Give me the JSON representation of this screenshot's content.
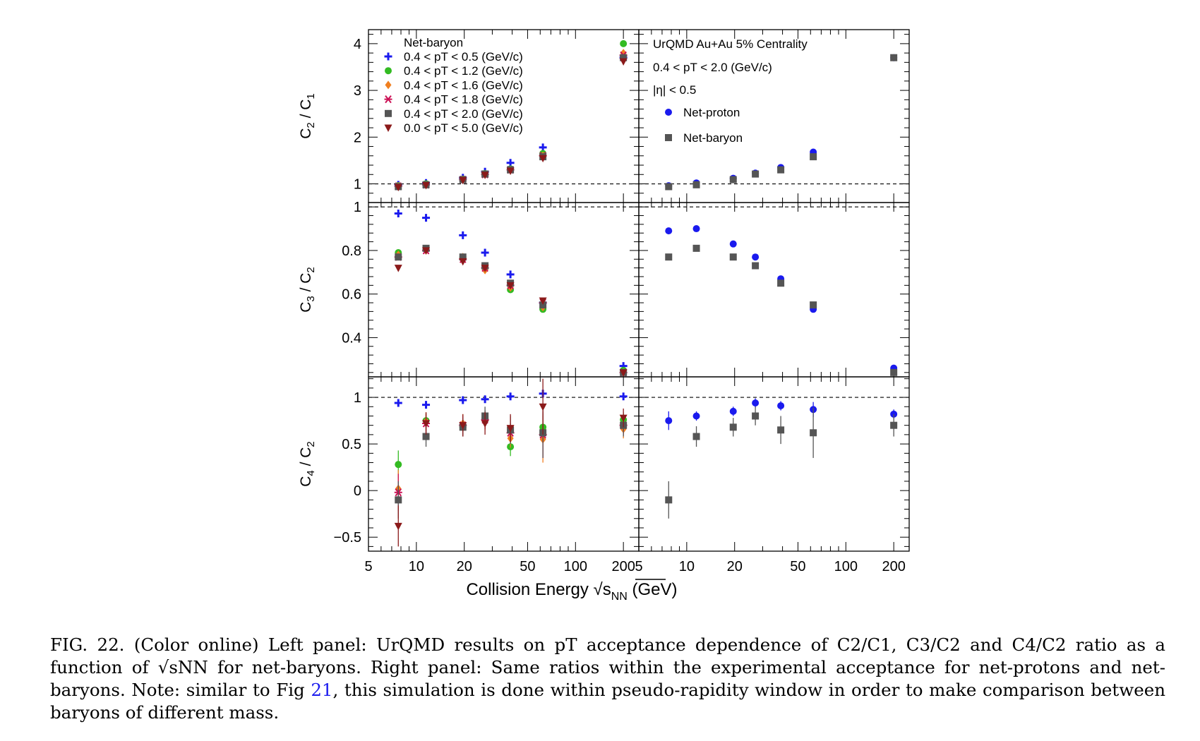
{
  "figure": {
    "xlabel": "Collision Energy √s",
    "xlabel_sub": "NN",
    "xlabel_unit": " (GeV)",
    "xticks": [
      "5",
      "10",
      "20",
      "50",
      "100",
      "200"
    ]
  },
  "chart_data": [
    {
      "type": "scatter",
      "panel": "left-top",
      "ylabel": "C2 / C1",
      "xscale": "log",
      "xlim": [
        5,
        250
      ],
      "ylim": [
        0.6,
        4.3
      ],
      "yticks": [
        "1",
        "2",
        "3",
        "4"
      ],
      "reference_line": 1,
      "legend_title": "Net-baryon",
      "series": [
        {
          "name": "0.4 < pT < 0.5 (GeV/c)",
          "marker": "plus",
          "color": "#1a1aee",
          "x": [
            7.7,
            11.5,
            19.6,
            27,
            39,
            62.4,
            200
          ],
          "y": [
            0.98,
            1.02,
            1.13,
            1.26,
            1.45,
            1.78,
            3.7
          ]
        },
        {
          "name": "0.4 < pT < 1.2 (GeV/c)",
          "marker": "circle",
          "color": "#33bb22",
          "x": [
            7.7,
            11.5,
            19.6,
            27,
            39,
            62.4,
            200
          ],
          "y": [
            0.96,
            1.0,
            1.1,
            1.22,
            1.32,
            1.65,
            4.0
          ]
        },
        {
          "name": "0.4 < pT < 1.6 (GeV/c)",
          "marker": "diamond",
          "color": "#f07f20",
          "x": [
            7.7,
            11.5,
            19.6,
            27,
            39,
            62.4,
            200
          ],
          "y": [
            0.95,
            0.98,
            1.09,
            1.2,
            1.3,
            1.6,
            3.8
          ]
        },
        {
          "name": "0.4 < pT < 1.8 (GeV/c)",
          "marker": "star",
          "color": "#cc1155",
          "x": [
            7.7,
            11.5,
            19.6,
            27,
            39,
            62.4,
            200
          ],
          "y": [
            0.95,
            0.98,
            1.09,
            1.2,
            1.3,
            1.6,
            3.75
          ]
        },
        {
          "name": "0.4 < pT < 2.0 (GeV/c)",
          "marker": "square",
          "color": "#555555",
          "x": [
            7.7,
            11.5,
            19.6,
            27,
            39,
            62.4,
            200
          ],
          "y": [
            0.94,
            0.98,
            1.09,
            1.21,
            1.3,
            1.58,
            3.7
          ]
        },
        {
          "name": "0.0 < pT < 5.0 (GeV/c)",
          "marker": "triangle-down",
          "color": "#8b1a1a",
          "x": [
            7.7,
            11.5,
            19.6,
            27,
            39,
            62.4,
            200
          ],
          "y": [
            0.93,
            0.97,
            1.08,
            1.19,
            1.28,
            1.55,
            3.62
          ]
        }
      ]
    },
    {
      "type": "scatter",
      "panel": "right-top",
      "xscale": "log",
      "xlim": [
        5,
        250
      ],
      "ylim": [
        0.6,
        4.3
      ],
      "reference_line": 1,
      "annotations": [
        "UrQMD Au+Au 5% Centrality",
        "0.4 < pT < 2.0 (GeV/c)",
        "|η| < 0.5"
      ],
      "series": [
        {
          "name": "Net-proton",
          "marker": "circle",
          "color": "#1a1aee",
          "x": [
            7.7,
            11.5,
            19.6,
            27,
            39,
            62.4,
            200
          ],
          "y": [
            0.96,
            1.02,
            1.12,
            1.23,
            1.35,
            1.68,
            3.7
          ]
        },
        {
          "name": "Net-baryon",
          "marker": "square",
          "color": "#555555",
          "x": [
            7.7,
            11.5,
            19.6,
            27,
            39,
            62.4,
            200
          ],
          "y": [
            0.94,
            0.98,
            1.09,
            1.21,
            1.3,
            1.58,
            3.7
          ]
        }
      ]
    },
    {
      "type": "scatter",
      "panel": "left-middle",
      "ylabel": "C3 / C2",
      "xscale": "log",
      "xlim": [
        5,
        250
      ],
      "ylim": [
        0.22,
        1.02
      ],
      "yticks": [
        "0.4",
        "0.6",
        "0.8",
        "1"
      ],
      "reference_line": 1,
      "series": [
        {
          "name": "0.4 < pT < 0.5 (GeV/c)",
          "marker": "plus",
          "color": "#1a1aee",
          "x": [
            7.7,
            11.5,
            19.6,
            27,
            39,
            62.4,
            200
          ],
          "y": [
            0.97,
            0.95,
            0.87,
            0.79,
            0.69,
            0.56,
            0.27
          ]
        },
        {
          "name": "0.4 < pT < 1.2 (GeV/c)",
          "marker": "circle",
          "color": "#33bb22",
          "x": [
            7.7,
            11.5,
            19.6,
            27,
            39,
            62.4,
            200
          ],
          "y": [
            0.79,
            0.81,
            0.77,
            0.72,
            0.62,
            0.53,
            0.25
          ]
        },
        {
          "name": "0.4 < pT < 1.6 (GeV/c)",
          "marker": "diamond",
          "color": "#f07f20",
          "x": [
            7.7,
            11.5,
            19.6,
            27,
            39,
            62.4,
            200
          ],
          "y": [
            0.78,
            0.8,
            0.77,
            0.71,
            0.63,
            0.54,
            0.24
          ]
        },
        {
          "name": "0.4 < pT < 1.8 (GeV/c)",
          "marker": "star",
          "color": "#cc1155",
          "x": [
            7.7,
            11.5,
            19.6,
            27,
            39,
            62.4,
            200
          ],
          "y": [
            0.77,
            0.8,
            0.76,
            0.72,
            0.64,
            0.56,
            0.24
          ]
        },
        {
          "name": "0.4 < pT < 2.0 (GeV/c)",
          "marker": "square",
          "color": "#555555",
          "x": [
            7.7,
            11.5,
            19.6,
            27,
            39,
            62.4,
            200
          ],
          "y": [
            0.77,
            0.81,
            0.77,
            0.73,
            0.65,
            0.55,
            0.24
          ]
        },
        {
          "name": "0.0 < pT < 5.0 (GeV/c)",
          "marker": "triangle-down",
          "color": "#8b1a1a",
          "x": [
            7.7,
            11.5,
            19.6,
            27,
            39,
            62.4,
            200
          ],
          "y": [
            0.72,
            0.8,
            0.75,
            0.72,
            0.64,
            0.57,
            0.24
          ]
        }
      ]
    },
    {
      "type": "scatter",
      "panel": "right-middle",
      "xscale": "log",
      "xlim": [
        5,
        250
      ],
      "ylim": [
        0.22,
        1.02
      ],
      "reference_line": 1,
      "series": [
        {
          "name": "Net-proton",
          "marker": "circle",
          "color": "#1a1aee",
          "x": [
            7.7,
            11.5,
            19.6,
            27,
            39,
            62.4,
            200
          ],
          "y": [
            0.89,
            0.9,
            0.83,
            0.77,
            0.67,
            0.53,
            0.26
          ]
        },
        {
          "name": "Net-baryon",
          "marker": "square",
          "color": "#555555",
          "x": [
            7.7,
            11.5,
            19.6,
            27,
            39,
            62.4,
            200
          ],
          "y": [
            0.77,
            0.81,
            0.77,
            0.73,
            0.65,
            0.55,
            0.24
          ]
        }
      ]
    },
    {
      "type": "scatter",
      "panel": "left-bottom",
      "ylabel": "C4 / C2",
      "xscale": "log",
      "xlim": [
        5,
        250
      ],
      "ylim": [
        -0.65,
        1.22
      ],
      "yticks": [
        "−0.5",
        "0",
        "0.5",
        "1"
      ],
      "reference_line": 1,
      "series": [
        {
          "name": "0.4 < pT < 0.5 (GeV/c)",
          "marker": "plus",
          "color": "#1a1aee",
          "x": [
            7.7,
            11.5,
            19.6,
            27,
            39,
            62.4,
            200
          ],
          "y": [
            0.94,
            0.92,
            0.97,
            0.98,
            1.01,
            1.04,
            1.01
          ],
          "err": [
            0.02,
            0.02,
            0.02,
            0.02,
            0.02,
            0.03,
            0.02
          ]
        },
        {
          "name": "0.4 < pT < 1.2 (GeV/c)",
          "marker": "circle",
          "color": "#33bb22",
          "x": [
            7.7,
            11.5,
            19.6,
            27,
            39,
            62.4,
            200
          ],
          "y": [
            0.28,
            0.75,
            0.68,
            0.78,
            0.47,
            0.68,
            0.76
          ],
          "err": [
            0.15,
            0.08,
            0.08,
            0.08,
            0.1,
            0.15,
            0.08
          ]
        },
        {
          "name": "0.4 < pT < 1.6 (GeV/c)",
          "marker": "diamond",
          "color": "#f07f20",
          "x": [
            7.7,
            11.5,
            19.6,
            27,
            39,
            62.4,
            200
          ],
          "y": [
            0.02,
            0.74,
            0.72,
            0.75,
            0.56,
            0.55,
            0.66
          ],
          "err": [
            0.2,
            0.1,
            0.1,
            0.1,
            0.1,
            0.25,
            0.1
          ]
        },
        {
          "name": "0.4 < pT < 1.8 (GeV/c)",
          "marker": "star",
          "color": "#cc1155",
          "x": [
            7.7,
            11.5,
            19.6,
            27,
            39,
            62.4,
            200
          ],
          "y": [
            -0.02,
            0.72,
            0.7,
            0.76,
            0.62,
            0.6,
            0.7
          ],
          "err": [
            0.2,
            0.1,
            0.1,
            0.1,
            0.1,
            0.25,
            0.1
          ]
        },
        {
          "name": "0.4 < pT < 2.0 (GeV/c)",
          "marker": "square",
          "color": "#555555",
          "x": [
            7.7,
            11.5,
            19.6,
            27,
            39,
            62.4,
            200
          ],
          "y": [
            -0.1,
            0.58,
            0.68,
            0.8,
            0.65,
            0.62,
            0.7
          ],
          "err": [
            0.2,
            0.11,
            0.1,
            0.1,
            0.15,
            0.27,
            0.12
          ]
        },
        {
          "name": "0.0 < pT < 5.0 (GeV/c)",
          "marker": "triangle-down",
          "color": "#8b1a1a",
          "x": [
            7.7,
            11.5,
            19.6,
            27,
            39,
            62.4,
            200
          ],
          "y": [
            -0.38,
            0.72,
            0.7,
            0.72,
            0.67,
            0.9,
            0.78
          ],
          "err": [
            0.22,
            0.12,
            0.12,
            0.12,
            0.15,
            0.3,
            0.1
          ]
        }
      ]
    },
    {
      "type": "scatter",
      "panel": "right-bottom",
      "xscale": "log",
      "xlim": [
        5,
        250
      ],
      "ylim": [
        -0.65,
        1.22
      ],
      "reference_line": 1,
      "series": [
        {
          "name": "Net-proton",
          "marker": "circle",
          "color": "#1a1aee",
          "x": [
            7.7,
            11.5,
            19.6,
            27,
            39,
            62.4,
            200
          ],
          "y": [
            0.75,
            0.8,
            0.85,
            0.94,
            0.91,
            0.87,
            0.82
          ],
          "err": [
            0.1,
            0.05,
            0.05,
            0.05,
            0.05,
            0.08,
            0.05
          ]
        },
        {
          "name": "Net-baryon",
          "marker": "square",
          "color": "#555555",
          "x": [
            7.7,
            11.5,
            19.6,
            27,
            39,
            62.4,
            200
          ],
          "y": [
            -0.1,
            0.58,
            0.68,
            0.8,
            0.65,
            0.62,
            0.7
          ],
          "err": [
            0.2,
            0.11,
            0.1,
            0.1,
            0.15,
            0.27,
            0.12
          ]
        }
      ]
    }
  ],
  "caption": {
    "label": "FIG. 22.",
    "part1": " (Color online) Left panel: UrQMD results on pT acceptance dependence of C2/C1, C3/C2 and C4/C2 ratio as a function of √sNN for net-baryons. Right panel: Same ratios within the experimental acceptance for net-protons and net-baryons. Note: similar to Fig ",
    "figref": "21",
    "part2": ", this simulation is done within pseudo-rapidity window in order to make comparison between baryons of different mass."
  }
}
